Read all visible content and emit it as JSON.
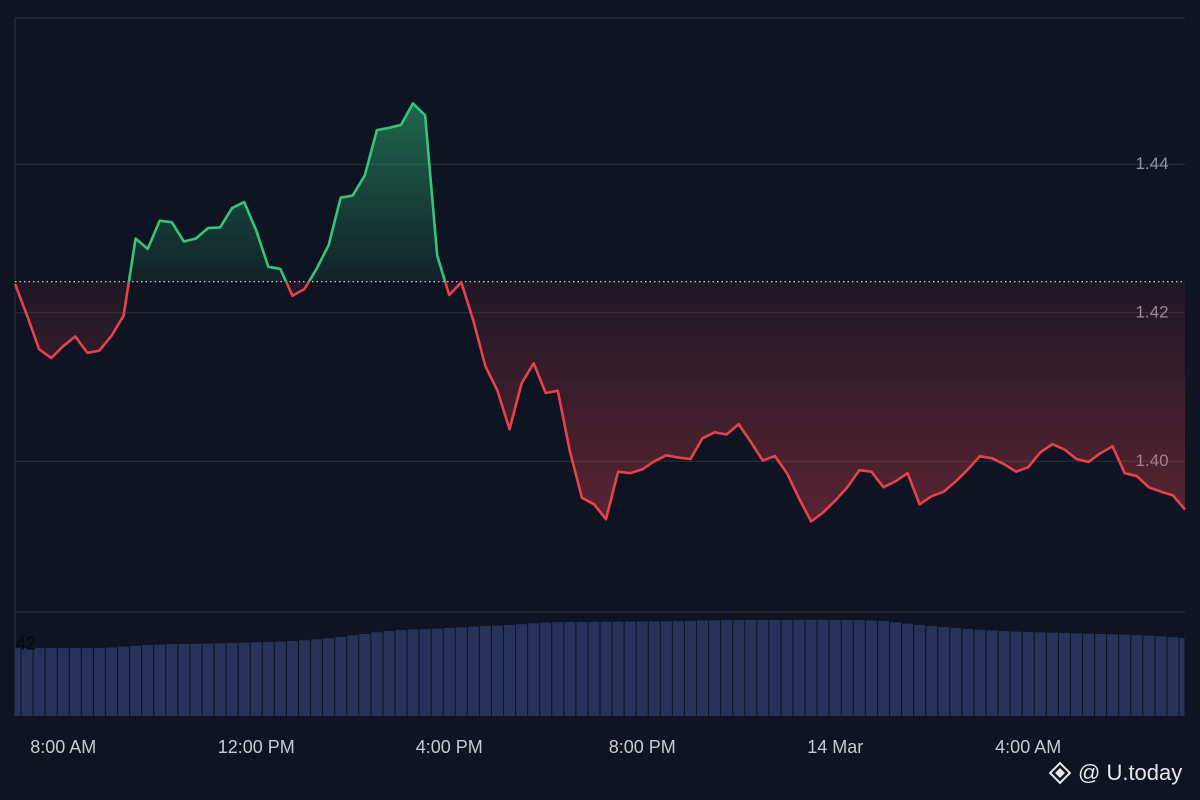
{
  "chart_data": [
    {
      "type": "line",
      "x": [
        7,
        7.25,
        7.5,
        7.75,
        8,
        8.25,
        8.5,
        8.75,
        9,
        9.25,
        9.5,
        9.75,
        10,
        10.25,
        10.5,
        10.75,
        11,
        11.25,
        11.5,
        11.75,
        12,
        12.25,
        12.5,
        12.75,
        13,
        13.25,
        13.5,
        13.75,
        14,
        14.25,
        14.5,
        14.75,
        15,
        15.25,
        15.5,
        15.75,
        16,
        16.25,
        16.5,
        16.75,
        17,
        17.25,
        17.5,
        17.75,
        18,
        18.25,
        18.5,
        18.75,
        19,
        19.25,
        19.5,
        19.75,
        20,
        20.25,
        20.5,
        20.75,
        21,
        21.25,
        21.5,
        21.75,
        22,
        22.25,
        22.5,
        22.75,
        23,
        23.25,
        23.5,
        23.75,
        24,
        24.25,
        24.5,
        24.75,
        25,
        25.25,
        25.5,
        25.75,
        26,
        26.25,
        26.5,
        26.75,
        27,
        27.25,
        27.5,
        27.75,
        28,
        28.25,
        28.5,
        28.75,
        29,
        29.25,
        29.5,
        29.75,
        30,
        30.25,
        30.5,
        30.75,
        31,
        31.25
      ],
      "values": [
        1.4239,
        1.4196,
        1.4151,
        1.4139,
        1.4155,
        1.4168,
        1.4146,
        1.4149,
        1.4169,
        1.4196,
        1.43,
        1.4286,
        1.4324,
        1.4322,
        1.4296,
        1.43,
        1.4314,
        1.4315,
        1.4341,
        1.4349,
        1.4311,
        1.4262,
        1.4259,
        1.4223,
        1.4232,
        1.4259,
        1.4291,
        1.4355,
        1.4358,
        1.4385,
        1.4446,
        1.4449,
        1.4453,
        1.4482,
        1.4466,
        1.4277,
        1.4224,
        1.4241,
        1.4189,
        1.4128,
        1.4095,
        1.4043,
        1.4105,
        1.4132,
        1.4092,
        1.4095,
        1.4014,
        1.3951,
        1.3942,
        1.3922,
        1.3986,
        1.3984,
        1.3989,
        1.4,
        1.4008,
        1.4005,
        1.4003,
        1.4031,
        1.4039,
        1.4036,
        1.405,
        1.4026,
        1.4001,
        1.4007,
        1.3984,
        1.395,
        1.3919,
        1.3931,
        1.3947,
        1.3965,
        1.3988,
        1.3986,
        1.3965,
        1.3973,
        1.3984,
        1.3942,
        1.3953,
        1.3959,
        1.3973,
        1.3989,
        1.4007,
        1.4004,
        1.3996,
        1.3986,
        1.3992,
        1.4012,
        1.4023,
        1.4016,
        1.4003,
        1.3999,
        1.4011,
        1.402,
        1.3984,
        1.398,
        1.3965,
        1.3959,
        1.3954,
        1.3935
      ],
      "baseline": 1.4242,
      "up_color": "#34c47c",
      "down_color": "#e5414f",
      "xlim": [
        7,
        31.25
      ],
      "xticks": [
        {
          "value": 8,
          "label": "8:00 AM"
        },
        {
          "value": 12,
          "label": "12:00 PM"
        },
        {
          "value": 16,
          "label": "4:00 PM"
        },
        {
          "value": 20,
          "label": "8:00 PM"
        },
        {
          "value": 24,
          "label": "14 Mar"
        },
        {
          "value": 28,
          "label": "4:00 AM"
        }
      ],
      "ylim": [
        1.3797,
        1.4597
      ],
      "yticks": [
        {
          "value": 1.4,
          "label": "1.40"
        },
        1.42,
        1.44
      ],
      "grid": true
    },
    {
      "type": "bar",
      "x": [
        7,
        7.25,
        7.5,
        7.75,
        8,
        8.25,
        8.5,
        8.75,
        9,
        9.25,
        9.5,
        9.75,
        10,
        10.25,
        10.5,
        10.75,
        11,
        11.25,
        11.5,
        11.75,
        12,
        12.25,
        12.5,
        12.75,
        13,
        13.25,
        13.5,
        13.75,
        14,
        14.25,
        14.5,
        14.75,
        15,
        15.25,
        15.5,
        15.75,
        16,
        16.25,
        16.5,
        16.75,
        17,
        17.25,
        17.5,
        17.75,
        18,
        18.25,
        18.5,
        18.75,
        19,
        19.25,
        19.5,
        19.75,
        20,
        20.25,
        20.5,
        20.75,
        21,
        21.25,
        21.5,
        21.75,
        22,
        22.25,
        22.5,
        22.75,
        23,
        23.25,
        23.5,
        23.75,
        24,
        24.25,
        24.5,
        24.75,
        25,
        25.25,
        25.5,
        25.75,
        26,
        26.25,
        26.5,
        26.75,
        27,
        27.25,
        27.5,
        27.75,
        28,
        28.25,
        28.5,
        28.75,
        29,
        29.25,
        29.5,
        29.75,
        30,
        30.25,
        30.5,
        30.75,
        31,
        31.25
      ],
      "values": [
        40.2,
        40.2,
        40.2,
        40.2,
        40.2,
        40.2,
        40.2,
        40.2,
        40.5,
        41,
        41.5,
        42,
        42.3,
        42.5,
        42.6,
        42.7,
        42.8,
        43,
        43.2,
        43.4,
        43.6,
        43.8,
        44,
        44.3,
        44.8,
        45.3,
        46,
        46.8,
        47.6,
        48.5,
        49.5,
        50.3,
        50.9,
        51.2,
        51.4,
        51.6,
        52.1,
        52.4,
        52.8,
        53.2,
        53.5,
        53.8,
        54.3,
        54.8,
        55.2,
        55.5,
        55.6,
        55.6,
        55.7,
        55.7,
        55.8,
        55.8,
        55.9,
        55.9,
        56,
        56.1,
        56.3,
        56.5,
        56.6,
        56.7,
        56.7,
        56.8,
        56.8,
        56.8,
        56.8,
        56.9,
        56.9,
        56.9,
        56.8,
        56.8,
        56.7,
        56.5,
        56.2,
        55.4,
        54.6,
        53.9,
        53.2,
        52.6,
        52,
        51.5,
        51,
        50.6,
        50.2,
        49.9,
        49.7,
        49.5,
        49.3,
        49.1,
        48.9,
        48.7,
        48.5,
        48.3,
        48.1,
        47.8,
        47.5,
        47.1,
        46.6,
        46.1
      ],
      "color": "#27325a",
      "xlim": [
        7,
        31.25
      ],
      "ylim": [
        0,
        61.5
      ],
      "yticks": [
        42
      ]
    }
  ],
  "watermark": "@ U.today"
}
